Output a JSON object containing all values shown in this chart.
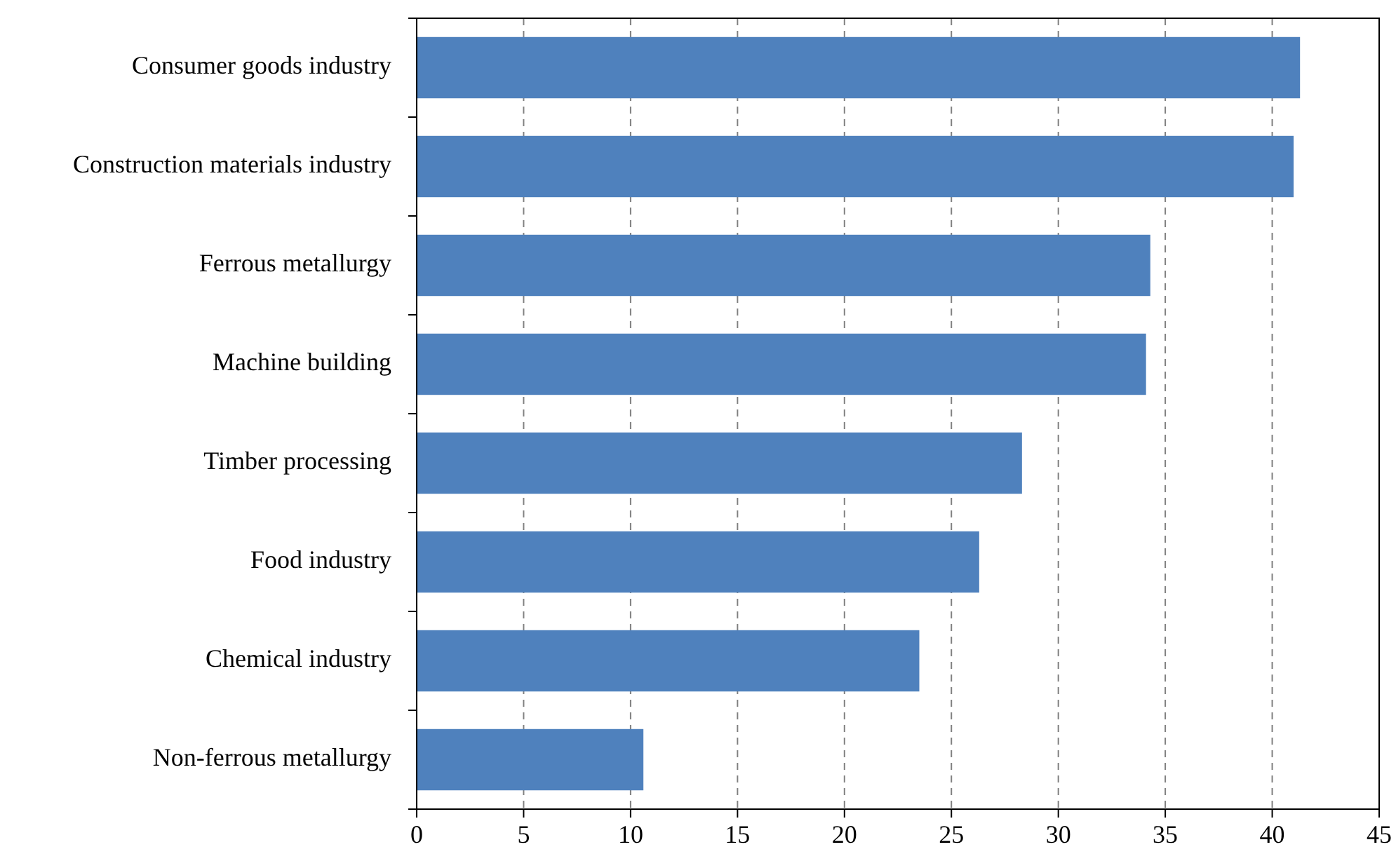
{
  "chart_data": {
    "type": "bar",
    "orientation": "horizontal",
    "categories": [
      "Consumer goods industry",
      "Construction materials industry",
      "Ferrous metallurgy",
      "Machine building",
      "Timber processing",
      "Food industry",
      "Chemical industry",
      "Non-ferrous metallurgy"
    ],
    "values": [
      41.3,
      41.0,
      34.3,
      34.1,
      28.3,
      26.3,
      23.5,
      10.6
    ],
    "color": "#4f81bd",
    "xlim": [
      0,
      45
    ],
    "xticks": [
      0,
      5,
      10,
      15,
      20,
      25,
      30,
      35,
      40,
      45
    ],
    "grid": "x"
  }
}
